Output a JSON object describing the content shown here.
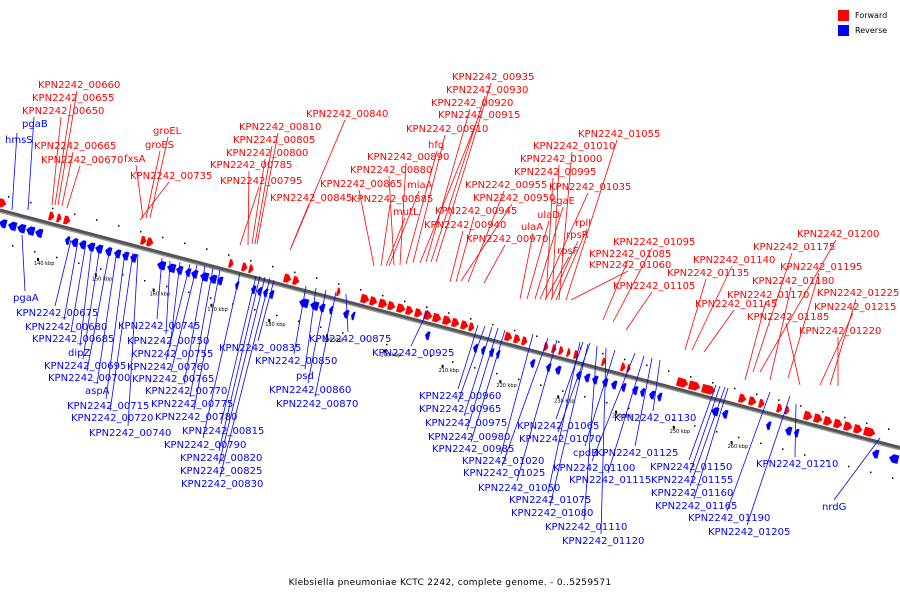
{
  "legend": {
    "forward_label": "Forward",
    "reverse_label": "Reverse",
    "forward_color": "#ff0000",
    "reverse_color": "#0000ff"
  },
  "caption": "Klebsiella pneumoniae KCTC 2242, complete genome. - 0..5259571",
  "ticks": [
    "140 kbp",
    "150 kbp",
    "160 kbp",
    "170 kbp",
    "180 kbp",
    "190 kbp",
    "200 kbp",
    "210 kbp",
    "220 kbp",
    "230 kbp",
    "240 kbp",
    "250 kbp",
    "260 kbp"
  ],
  "forward_labels": [
    "KPN2242_00660",
    "KPN2242_00655",
    "KPN2242_00650",
    "KPN2242_00665",
    "KPN2242_00670",
    "groEL",
    "groES",
    "fxsA",
    "KPN2242_00735",
    "KPN2242_00840",
    "KPN2242_00810",
    "KPN2242_00805",
    "KPN2242_00800",
    "KPN2242_00785",
    "KPN2242_00795",
    "KPN2242_00845",
    "KPN2242_00935",
    "KPN2242_00930",
    "KPN2242_00920",
    "KPN2242_00915",
    "KPN2242_00910",
    "hfq",
    "KPN2242_00890",
    "KPN2242_00880",
    "miaA",
    "KPN2242_00865",
    "KPN2242_00885",
    "mutL",
    "KPN2242_00955",
    "KPN2242_00950",
    "KPN2242_00945",
    "KPN2242_00940",
    "KPN2242_00970",
    "KPN2242_01055",
    "KPN2242_01010",
    "KPN2242_01000",
    "KPN2242_00995",
    "KPN2242_01035",
    "sgaE",
    "ulaD",
    "ulaA",
    "rplI",
    "rpsR",
    "rpsF",
    "KPN2242_01060",
    "KPN2242_01095",
    "KPN2242_01085",
    "KPN2242_01105",
    "KPN2242_01140",
    "KPN2242_01135",
    "KPN2242_01145",
    "KPN2242_01200",
    "KPN2242_01175",
    "KPN2242_01195",
    "KPN2242_01180",
    "KPN2242_01170",
    "KPN2242_01225",
    "KPN2242_01215",
    "KPN2242_01185",
    "KPN2242_01220"
  ],
  "reverse_labels": [
    "hmsS",
    "pgaB",
    "pgaA",
    "KPN2242_00675",
    "KPN2242_00680",
    "KPN2242_00685",
    "dipZ",
    "KPN2242_00695",
    "KPN2242_00700",
    "aspA",
    "KPN2242_00715",
    "KPN2242_00720",
    "KPN2242_00740",
    "KPN2242_00745",
    "KPN2242_00750",
    "KPN2242_00755",
    "KPN2242_00760",
    "KPN2242_00765",
    "KPN2242_00770",
    "KPN2242_00775",
    "KPN2242_00780",
    "KPN2242_00815",
    "KPN2242_00790",
    "KPN2242_00820",
    "KPN2242_00825",
    "KPN2242_00830",
    "KPN2242_00835",
    "KPN2242_00850",
    "psd",
    "KPN2242_00860",
    "KPN2242_00870",
    "KPN2242_00875",
    "KPN2242_00925",
    "KPN2242_00960",
    "KPN2242_00965",
    "KPN2242_00975",
    "KPN2242_00980",
    "KPN2242_00985",
    "KPN2242_01020",
    "KPN2242_01025",
    "KPN2242_01050",
    "KPN2242_01075",
    "KPN2242_01080",
    "KPN2242_01110",
    "KPN2242_01120",
    "KPN2242_01065",
    "KPN2242_01070",
    "cpdB",
    "KPN2242_01100",
    "KPN2242_01115",
    "KPN2242_01125",
    "KPN2242_01130",
    "KPN2242_01150",
    "KPN2242_01155",
    "KPN2242_01160",
    "KPN2242_01165",
    "KPN2242_01190",
    "KPN2242_01205",
    "KPN2242_01210",
    "nrdG"
  ]
}
